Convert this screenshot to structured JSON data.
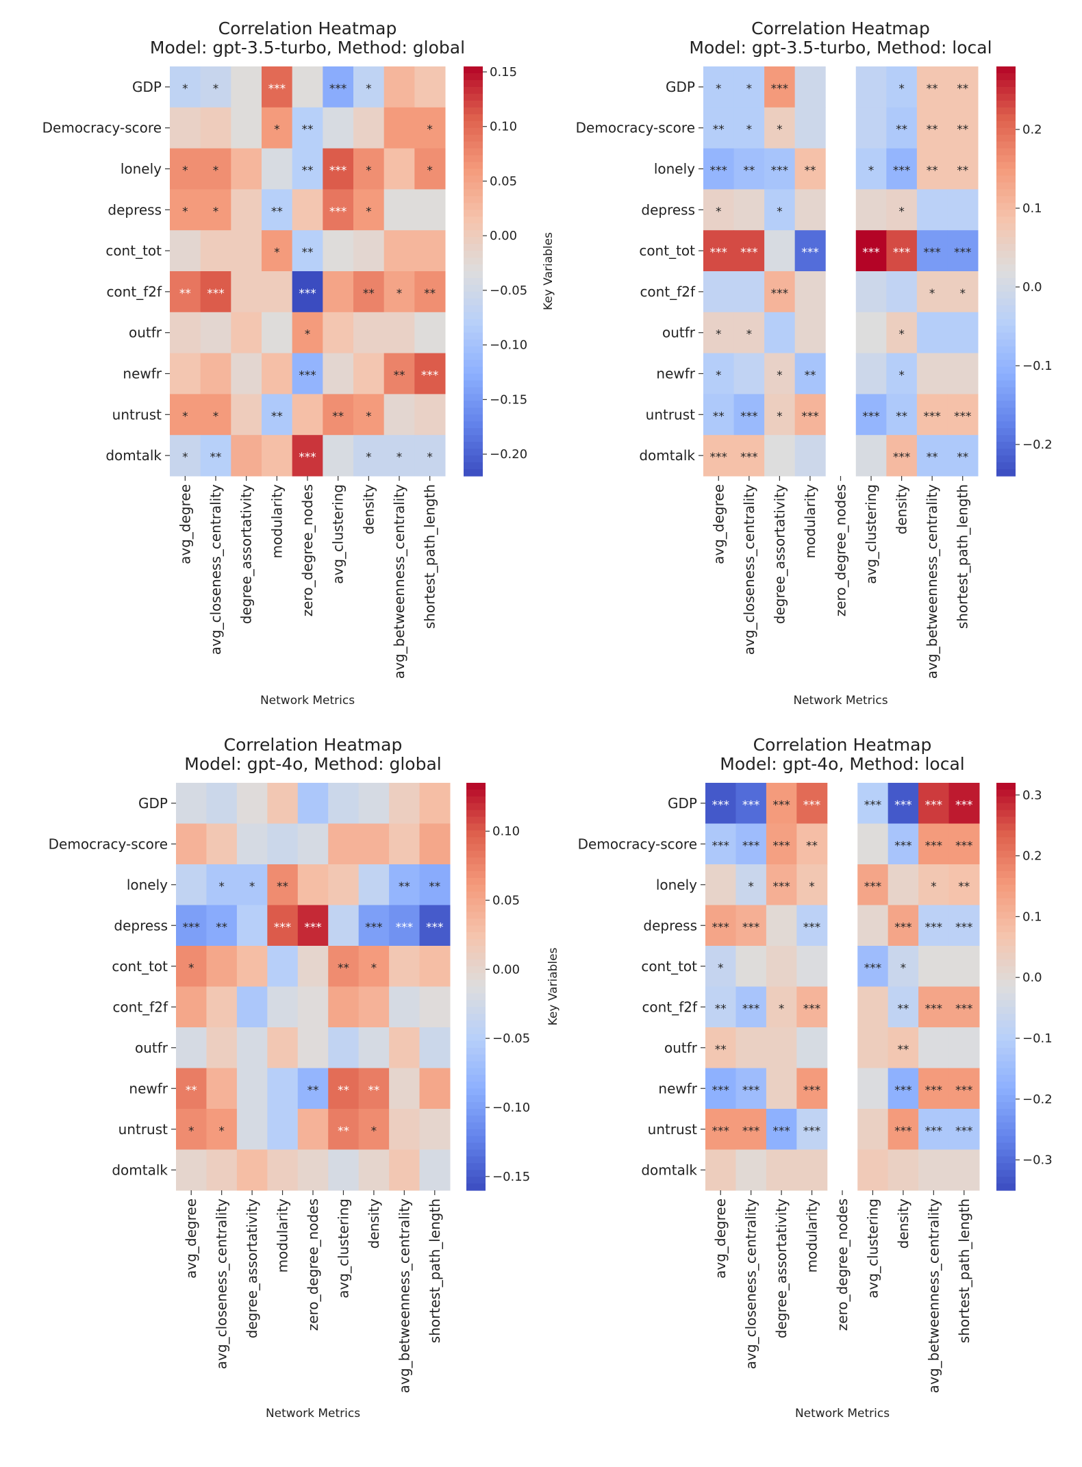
{
  "colormap": "coolwarm",
  "colormap_stops": [
    "#3b4cc0",
    "#6282ea",
    "#8db0fe",
    "#b8d0f9",
    "#dddddd",
    "#f5c4ad",
    "#f49a7b",
    "#de604d",
    "#b40426"
  ],
  "chart_data": [
    {
      "type": "heatmap",
      "title": "Correlation Heatmap",
      "subtitle": "Model: gpt-3.5-turbo, Method: global",
      "xlabel": "Network Metrics",
      "ylabel": "Key Variables",
      "columns": [
        "avg_degree",
        "avg_closeness_centrality",
        "degree_assortativity",
        "modularity",
        "zero_degree_nodes",
        "avg_clustering",
        "density",
        "avg_betweenness_centrality",
        "shortest_path_length"
      ],
      "rows": [
        "GDP",
        "Democracy-score",
        "lonely",
        "depress",
        "cont_tot",
        "cont_f2f",
        "outfr",
        "newfr",
        "untrust",
        "domtalk"
      ],
      "vrange": [
        -0.22,
        0.155
      ],
      "colorbar_ticks": [
        0.15,
        0.1,
        0.05,
        0.0,
        -0.05,
        -0.1,
        -0.15,
        -0.2
      ],
      "colorbar_tick_labels": [
        "0.15",
        "0.10",
        "0.05",
        "0.00",
        "−0.05",
        "−0.10",
        "−0.15",
        "−0.20"
      ],
      "values": [
        [
          -0.07,
          -0.06,
          -0.03,
          0.1,
          -0.03,
          -0.13,
          -0.07,
          0.03,
          0.01
        ],
        [
          -0.01,
          0.0,
          -0.03,
          0.06,
          -0.08,
          -0.04,
          -0.01,
          0.06,
          0.06
        ],
        [
          0.07,
          0.07,
          0.03,
          -0.04,
          -0.08,
          0.11,
          0.07,
          0.02,
          0.07
        ],
        [
          0.06,
          0.06,
          0.0,
          -0.08,
          0.01,
          0.09,
          0.06,
          -0.03,
          -0.03
        ],
        [
          -0.02,
          0.0,
          0.0,
          0.06,
          -0.08,
          -0.03,
          -0.02,
          0.03,
          0.03
        ],
        [
          0.09,
          0.11,
          0.0,
          0.0,
          -0.22,
          0.05,
          0.08,
          0.05,
          0.07
        ],
        [
          -0.01,
          -0.02,
          0.01,
          -0.03,
          0.06,
          0.01,
          -0.01,
          -0.01,
          -0.03
        ],
        [
          0.01,
          0.03,
          -0.02,
          0.02,
          -0.12,
          -0.02,
          0.01,
          0.08,
          0.11
        ],
        [
          0.06,
          0.06,
          0.0,
          -0.09,
          0.02,
          0.07,
          0.06,
          -0.02,
          -0.01
        ],
        [
          -0.06,
          -0.08,
          0.04,
          0.02,
          0.13,
          -0.04,
          -0.06,
          -0.06,
          -0.06
        ]
      ],
      "annotations": [
        [
          "*",
          "*",
          "",
          "***",
          "",
          "***",
          "*",
          "",
          ""
        ],
        [
          "",
          "",
          "",
          "*",
          "**",
          "",
          "",
          "",
          "*"
        ],
        [
          "*",
          "*",
          "",
          "",
          "**",
          "***",
          "*",
          "",
          "*"
        ],
        [
          "*",
          "*",
          "",
          "**",
          "",
          "***",
          "*",
          "",
          ""
        ],
        [
          "",
          "",
          "",
          "*",
          "**",
          "",
          "",
          "",
          ""
        ],
        [
          "**",
          "***",
          "",
          "",
          "***",
          "",
          "**",
          "*",
          "**"
        ],
        [
          "",
          "",
          "",
          "",
          "*",
          "",
          "",
          "",
          ""
        ],
        [
          "",
          "",
          "",
          "",
          "***",
          "",
          "",
          "**",
          "***"
        ],
        [
          "*",
          "*",
          "",
          "**",
          "",
          "**",
          "*",
          "",
          ""
        ],
        [
          "*",
          "**",
          "",
          "",
          "***",
          "",
          "*",
          "*",
          "*"
        ]
      ]
    },
    {
      "type": "heatmap",
      "title": "Correlation Heatmap",
      "subtitle": "Model: gpt-3.5-turbo, Method: local",
      "xlabel": "Network Metrics",
      "ylabel": "",
      "columns": [
        "avg_degree",
        "avg_closeness_centrality",
        "degree_assortativity",
        "modularity",
        "zero_degree_nodes",
        "avg_clustering",
        "density",
        "avg_betweenness_centrality",
        "shortest_path_length"
      ],
      "rows": [
        "GDP",
        "Democracy-score",
        "lonely",
        "depress",
        "cont_tot",
        "cont_f2f",
        "outfr",
        "newfr",
        "untrust",
        "domtalk"
      ],
      "vrange": [
        -0.24,
        0.28
      ],
      "colorbar_ticks": [
        0.2,
        0.1,
        0.0,
        -0.1,
        -0.2
      ],
      "colorbar_tick_labels": [
        "0.2",
        "0.1",
        "0.0",
        "−0.1",
        "−0.2"
      ],
      "values": [
        [
          -0.05,
          -0.05,
          0.15,
          -0.01,
          null,
          -0.03,
          -0.05,
          0.08,
          0.08
        ],
        [
          -0.05,
          -0.05,
          0.06,
          -0.01,
          null,
          -0.03,
          -0.06,
          0.08,
          0.08
        ],
        [
          -0.1,
          -0.08,
          -0.07,
          0.09,
          null,
          -0.05,
          -0.1,
          0.08,
          0.08
        ],
        [
          0.05,
          0.04,
          -0.05,
          0.04,
          null,
          0.04,
          0.05,
          -0.04,
          -0.04
        ],
        [
          0.23,
          0.23,
          0.01,
          -0.2,
          null,
          0.28,
          0.23,
          -0.14,
          -0.14
        ],
        [
          -0.03,
          -0.03,
          0.11,
          0.04,
          null,
          -0.01,
          -0.03,
          0.06,
          0.06
        ],
        [
          0.05,
          0.05,
          -0.05,
          0.04,
          null,
          0.02,
          0.06,
          -0.05,
          -0.05
        ],
        [
          -0.05,
          -0.03,
          0.05,
          -0.07,
          null,
          -0.01,
          -0.05,
          0.04,
          0.04
        ],
        [
          -0.06,
          -0.09,
          0.06,
          0.11,
          null,
          -0.1,
          -0.06,
          0.09,
          0.09
        ],
        [
          0.09,
          0.09,
          0.02,
          -0.01,
          null,
          0.01,
          0.1,
          -0.06,
          -0.06
        ]
      ],
      "annotations": [
        [
          "*",
          "*",
          "***",
          "",
          "",
          "",
          "*",
          "**",
          "**"
        ],
        [
          "**",
          "*",
          "*",
          "",
          "",
          "",
          "**",
          "**",
          "**"
        ],
        [
          "***",
          "**",
          "***",
          "**",
          "",
          "*",
          "***",
          "**",
          "**"
        ],
        [
          "*",
          "",
          "*",
          "",
          "",
          "",
          "*",
          "",
          ""
        ],
        [
          "***",
          "***",
          "",
          "***",
          "",
          "***",
          "***",
          "***",
          "***"
        ],
        [
          "",
          "",
          "***",
          "",
          "",
          "",
          "",
          "*",
          "*"
        ],
        [
          "*",
          "*",
          "",
          "",
          "",
          "",
          "*",
          "",
          ""
        ],
        [
          "*",
          "",
          "*",
          "**",
          "",
          "",
          "*",
          "",
          ""
        ],
        [
          "**",
          "***",
          "*",
          "***",
          "",
          "***",
          "**",
          "***",
          "***"
        ],
        [
          "***",
          "***",
          "",
          "",
          "",
          "",
          "***",
          "**",
          "**"
        ]
      ]
    },
    {
      "type": "heatmap",
      "title": "Correlation Heatmap",
      "subtitle": "Model: gpt-4o, Method: global",
      "xlabel": "Network Metrics",
      "ylabel": "Key Variables",
      "columns": [
        "avg_degree",
        "avg_closeness_centrality",
        "degree_assortativity",
        "modularity",
        "zero_degree_nodes",
        "avg_clustering",
        "density",
        "avg_betweenness_centrality",
        "shortest_path_length"
      ],
      "rows": [
        "GDP",
        "Democracy-score",
        "lonely",
        "depress",
        "cont_tot",
        "cont_f2f",
        "outfr",
        "newfr",
        "untrust",
        "domtalk"
      ],
      "vrange": [
        -0.16,
        0.135
      ],
      "colorbar_ticks": [
        0.1,
        0.05,
        0.0,
        -0.05,
        -0.1,
        -0.15
      ],
      "colorbar_tick_labels": [
        "0.10",
        "0.05",
        "0.00",
        "−0.05",
        "−0.10",
        "−0.15"
      ],
      "values": [
        [
          -0.02,
          -0.03,
          -0.01,
          0.02,
          -0.06,
          -0.03,
          -0.02,
          0.01,
          0.03
        ],
        [
          0.04,
          0.02,
          -0.02,
          -0.03,
          -0.02,
          0.04,
          0.04,
          0.02,
          0.05
        ],
        [
          -0.04,
          -0.06,
          -0.06,
          0.07,
          0.03,
          0.02,
          -0.04,
          -0.08,
          -0.09
        ],
        [
          -0.1,
          -0.09,
          -0.05,
          0.1,
          0.12,
          -0.04,
          -0.1,
          -0.11,
          -0.15
        ],
        [
          0.07,
          0.05,
          0.03,
          -0.05,
          0.0,
          0.07,
          0.06,
          0.02,
          0.03
        ],
        [
          0.05,
          0.02,
          -0.06,
          -0.02,
          -0.01,
          0.05,
          0.04,
          -0.02,
          -0.01
        ],
        [
          -0.02,
          0.01,
          -0.02,
          0.02,
          -0.01,
          -0.04,
          -0.02,
          0.02,
          -0.03
        ],
        [
          0.08,
          0.04,
          -0.02,
          -0.05,
          -0.08,
          0.09,
          0.08,
          0.0,
          0.05
        ],
        [
          0.07,
          0.06,
          -0.02,
          -0.05,
          0.04,
          0.08,
          0.07,
          0.01,
          0.0
        ],
        [
          0.0,
          0.01,
          0.03,
          0.01,
          0.0,
          -0.02,
          0.0,
          0.02,
          -0.02
        ]
      ],
      "annotations": [
        [
          "",
          "",
          "",
          "",
          "",
          "",
          "",
          "",
          ""
        ],
        [
          "",
          "",
          "",
          "",
          "",
          "",
          "",
          "",
          ""
        ],
        [
          "",
          "*",
          "*",
          "**",
          "",
          "",
          "",
          "**",
          "**"
        ],
        [
          "***",
          "**",
          "",
          "***",
          "***",
          "",
          "***",
          "***",
          "***"
        ],
        [
          "*",
          "",
          "",
          "",
          "",
          "**",
          "*",
          "",
          ""
        ],
        [
          "",
          "",
          "",
          "",
          "",
          "",
          "",
          "",
          ""
        ],
        [
          "",
          "",
          "",
          "",
          "",
          "",
          "",
          "",
          ""
        ],
        [
          "**",
          "",
          "",
          "",
          "**",
          "**",
          "**",
          "",
          ""
        ],
        [
          "*",
          "*",
          "",
          "",
          "",
          "**",
          "*",
          "",
          ""
        ],
        [
          "",
          "",
          "",
          "",
          "",
          "",
          "",
          "",
          ""
        ]
      ]
    },
    {
      "type": "heatmap",
      "title": "Correlation Heatmap",
      "subtitle": "Model: gpt-4o, Method: local",
      "xlabel": "Network Metrics",
      "ylabel": "",
      "columns": [
        "avg_degree",
        "avg_closeness_centrality",
        "degree_assortativity",
        "modularity",
        "zero_degree_nodes",
        "avg_clustering",
        "density",
        "avg_betweenness_centrality",
        "shortest_path_length"
      ],
      "rows": [
        "GDP",
        "Democracy-score",
        "lonely",
        "depress",
        "cont_tot",
        "cont_f2f",
        "outfr",
        "newfr",
        "untrust",
        "domtalk"
      ],
      "vrange": [
        -0.35,
        0.32
      ],
      "colorbar_ticks": [
        0.3,
        0.2,
        0.1,
        0.0,
        -0.1,
        -0.2,
        -0.3
      ],
      "colorbar_tick_labels": [
        "0.3",
        "0.2",
        "0.1",
        "0.0",
        "−0.1",
        "−0.2",
        "−0.3"
      ],
      "values": [
        [
          -0.33,
          -0.3,
          0.15,
          0.22,
          null,
          -0.1,
          -0.33,
          0.27,
          0.3
        ],
        [
          -0.12,
          -0.15,
          0.14,
          0.08,
          null,
          -0.01,
          -0.13,
          0.15,
          0.15
        ],
        [
          0.02,
          -0.06,
          0.11,
          0.06,
          null,
          0.13,
          0.02,
          0.06,
          0.07
        ],
        [
          0.13,
          0.11,
          0.0,
          -0.09,
          null,
          0.01,
          0.13,
          -0.09,
          -0.09
        ],
        [
          -0.07,
          -0.01,
          0.02,
          -0.02,
          null,
          -0.15,
          -0.06,
          -0.01,
          -0.01
        ],
        [
          -0.08,
          -0.13,
          0.04,
          0.1,
          null,
          0.04,
          -0.08,
          0.13,
          0.13
        ],
        [
          0.06,
          0.03,
          0.03,
          -0.03,
          null,
          0.04,
          0.06,
          -0.02,
          -0.02
        ],
        [
          -0.18,
          -0.15,
          0.03,
          0.15,
          null,
          -0.02,
          -0.18,
          0.15,
          0.15
        ],
        [
          0.15,
          0.15,
          -0.18,
          -0.08,
          null,
          0.03,
          0.15,
          -0.12,
          -0.12
        ],
        [
          0.04,
          0.0,
          0.03,
          0.03,
          null,
          0.05,
          0.03,
          0.01,
          0.01
        ]
      ],
      "annotations": [
        [
          "***",
          "***",
          "***",
          "***",
          "",
          "***",
          "***",
          "***",
          "***"
        ],
        [
          "***",
          "***",
          "***",
          "**",
          "",
          "",
          "***",
          "***",
          "***"
        ],
        [
          "",
          "*",
          "***",
          "*",
          "",
          "***",
          "",
          "*",
          "**"
        ],
        [
          "***",
          "***",
          "",
          "***",
          "",
          "",
          "***",
          "***",
          "***"
        ],
        [
          "*",
          "",
          "",
          "",
          "",
          "***",
          "*",
          "",
          ""
        ],
        [
          "**",
          "***",
          "*",
          "***",
          "",
          "",
          "**",
          "***",
          "***"
        ],
        [
          "**",
          "",
          "",
          "",
          "",
          "",
          "**",
          "",
          ""
        ],
        [
          "***",
          "***",
          "",
          "***",
          "",
          "",
          "***",
          "***",
          "***"
        ],
        [
          "***",
          "***",
          "***",
          "***",
          "",
          "",
          "***",
          "***",
          "***"
        ],
        [
          "",
          "",
          "",
          "",
          "",
          "",
          "",
          "",
          ""
        ]
      ]
    }
  ]
}
